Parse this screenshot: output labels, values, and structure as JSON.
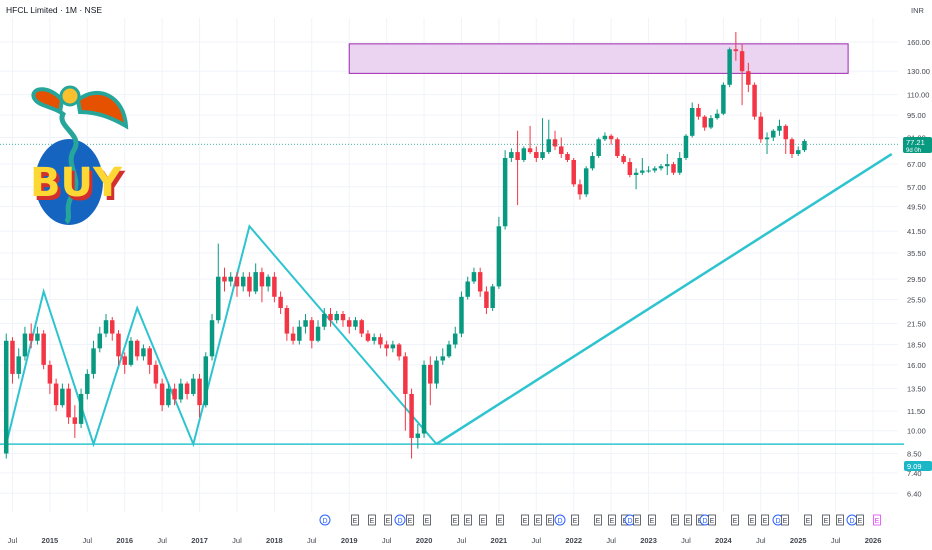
{
  "header": {
    "title": "HFCL Limited · 1M · NSE",
    "currency": "INR"
  },
  "colors": {
    "up": "#089981",
    "down": "#f23645",
    "line": "#2ec4cf",
    "box_fill": "#ebd4f2",
    "box_stroke": "#9c27b0",
    "grid": "#f0f3fa",
    "price_badge": "#089981",
    "support_badge": "#1cb7c7"
  },
  "price_badge": {
    "value": "77.21",
    "sub": "9d 0h"
  },
  "support_badge": {
    "value": "9.09"
  },
  "logo": {
    "text": "BUY"
  },
  "events": {
    "dividend": "D",
    "earnings": "E"
  },
  "chart_data": {
    "type": "candlestick",
    "title": "HFCL Limited · 1M · NSE",
    "y_scale": "log",
    "ylim": [
      5.6,
      190
    ],
    "y_ticks": [
      "160.00",
      "130.00",
      "110.00",
      "95.00",
      "81.00",
      "67.00",
      "57.00",
      "49.50",
      "41.50",
      "35.50",
      "29.50",
      "25.50",
      "21.50",
      "18.50",
      "16.00",
      "13.50",
      "11.50",
      "10.00",
      "8.50",
      "7.40",
      "6.40"
    ],
    "x_ticks": [
      "Jul",
      "2015",
      "Jul",
      "2016",
      "Jul",
      "2017",
      "Jul",
      "2018",
      "Jul",
      "2019",
      "Jul",
      "2020",
      "Jul",
      "2021",
      "Jul",
      "2022",
      "Jul",
      "2023",
      "Jul",
      "2024",
      "Jul",
      "2025",
      "Jul",
      "2026"
    ],
    "x_range": [
      "2014-05",
      "2026-05"
    ],
    "last_price": 77.21,
    "support_level": 9.09,
    "resistance_zone": {
      "low": 128,
      "high": 158,
      "from": "2019-01",
      "to": "2025-09"
    },
    "trendline": {
      "from": [
        "2020-03",
        9.1
      ],
      "to": [
        "2026-04",
        72
      ]
    },
    "zigzag": [
      [
        "2014-06",
        9.09
      ],
      [
        "2014-12",
        27
      ],
      [
        "2015-08",
        9.09
      ],
      [
        "2016-03",
        24
      ],
      [
        "2016-12",
        9.09
      ],
      [
        "2017-09",
        43
      ],
      [
        "2020-03",
        9.09
      ]
    ],
    "candles": [
      [
        8.5,
        19,
        8.2,
        20
      ],
      [
        19,
        15,
        14,
        19.5
      ],
      [
        15,
        17,
        14.5,
        18
      ],
      [
        17,
        20,
        16.5,
        21
      ],
      [
        20,
        19,
        18,
        21.5
      ],
      [
        19,
        20,
        18.5,
        21
      ],
      [
        20,
        16,
        15.5,
        20.5
      ],
      [
        16,
        14,
        13,
        16.5
      ],
      [
        14,
        12,
        11.5,
        14.5
      ],
      [
        12,
        13.5,
        11.8,
        14
      ],
      [
        13.5,
        11,
        10.5,
        14
      ],
      [
        11,
        10.5,
        9.5,
        12
      ],
      [
        10.5,
        13,
        10.2,
        13.5
      ],
      [
        13,
        15,
        12.5,
        15.5
      ],
      [
        15,
        18,
        14.5,
        19
      ],
      [
        18,
        20,
        17.5,
        21
      ],
      [
        20,
        22,
        19.5,
        23
      ],
      [
        22,
        20,
        19,
        22.5
      ],
      [
        20,
        17,
        16,
        20.5
      ],
      [
        17,
        16,
        15,
        17.5
      ],
      [
        16,
        19,
        15.8,
        19.5
      ],
      [
        19,
        17,
        16.5,
        19.2
      ],
      [
        17,
        18,
        16.5,
        18.5
      ],
      [
        18,
        16,
        15,
        18.3
      ],
      [
        16,
        14,
        13.5,
        16.5
      ],
      [
        14,
        12,
        11.5,
        14.5
      ],
      [
        12,
        13.5,
        11.8,
        14
      ],
      [
        13.5,
        12.5,
        12,
        14
      ],
      [
        12.5,
        14,
        12.2,
        14.5
      ],
      [
        14,
        13,
        12.5,
        14.2
      ],
      [
        13,
        14.5,
        12.8,
        15
      ],
      [
        14.5,
        12,
        11,
        15
      ],
      [
        12,
        17,
        11.8,
        17.5
      ],
      [
        17,
        22,
        16.5,
        23
      ],
      [
        22,
        30,
        21.5,
        38
      ],
      [
        30,
        29,
        27,
        32
      ],
      [
        29,
        30,
        28,
        31
      ],
      [
        30,
        28,
        26,
        31
      ],
      [
        28,
        30,
        27,
        31
      ],
      [
        30,
        27,
        26,
        31
      ],
      [
        27,
        31,
        26.5,
        33
      ],
      [
        31,
        28,
        25,
        32
      ],
      [
        28,
        30,
        27,
        30.5
      ],
      [
        30,
        26,
        25,
        31
      ],
      [
        26,
        24,
        23,
        27
      ],
      [
        24,
        20,
        19,
        24.5
      ],
      [
        20,
        19,
        18.5,
        21
      ],
      [
        19,
        21,
        18.5,
        22
      ],
      [
        21,
        22,
        20,
        23
      ],
      [
        22,
        19,
        18,
        22.5
      ],
      [
        19,
        21,
        18.8,
        22
      ],
      [
        21,
        23,
        20.5,
        24
      ],
      [
        23,
        22,
        21,
        24
      ],
      [
        22,
        23,
        21.5,
        23.5
      ],
      [
        23,
        22,
        21,
        23.5
      ],
      [
        22,
        21,
        20,
        22.5
      ],
      [
        21,
        22,
        20.5,
        22.5
      ],
      [
        22,
        20,
        19.5,
        22.2
      ],
      [
        20,
        19,
        18.8,
        20.5
      ],
      [
        19,
        19.5,
        18.5,
        20
      ],
      [
        19.5,
        18.5,
        18,
        20
      ],
      [
        18.5,
        18,
        17,
        19
      ],
      [
        18,
        18.5,
        17.5,
        19
      ],
      [
        18.5,
        17,
        16.5,
        18.7
      ],
      [
        17,
        13,
        10,
        17.5
      ],
      [
        13,
        9.5,
        8.2,
        13.5
      ],
      [
        9.5,
        9.8,
        8.8,
        10.5
      ],
      [
        9.8,
        16,
        9.5,
        16.5
      ],
      [
        16,
        14,
        12,
        17
      ],
      [
        14,
        16.5,
        13.5,
        17
      ],
      [
        16.5,
        17,
        16,
        18
      ],
      [
        17,
        18.5,
        16.8,
        19
      ],
      [
        18.5,
        20,
        18,
        21
      ],
      [
        20,
        26,
        19.5,
        27
      ],
      [
        26,
        29,
        25.5,
        30
      ],
      [
        29,
        31,
        28.5,
        32
      ],
      [
        31,
        27,
        26,
        32
      ],
      [
        27,
        24,
        23,
        28
      ],
      [
        24,
        28,
        23.5,
        28.5
      ],
      [
        28,
        43,
        27.5,
        46
      ],
      [
        43,
        70,
        42,
        74
      ],
      [
        70,
        73,
        68,
        75
      ],
      [
        73,
        69,
        50,
        85
      ],
      [
        69,
        75,
        68,
        76
      ],
      [
        75,
        73,
        72,
        88
      ],
      [
        73,
        70,
        68,
        76
      ],
      [
        70,
        73,
        69,
        93
      ],
      [
        73,
        80,
        72,
        92
      ],
      [
        80,
        76,
        74,
        85
      ],
      [
        76,
        72,
        70,
        81
      ],
      [
        72,
        69,
        68,
        73
      ],
      [
        69,
        58,
        57,
        70
      ],
      [
        58,
        54,
        52,
        60
      ],
      [
        54,
        65,
        53,
        66
      ],
      [
        65,
        71,
        64,
        73
      ],
      [
        71,
        80,
        70,
        81
      ],
      [
        80,
        82,
        79,
        84
      ],
      [
        82,
        80,
        77,
        83
      ],
      [
        80,
        71,
        70,
        81
      ],
      [
        71,
        68,
        67,
        72
      ],
      [
        68,
        62,
        61,
        70
      ],
      [
        62,
        63,
        56,
        65
      ],
      [
        63,
        64,
        62,
        70
      ],
      [
        64,
        64,
        63,
        66
      ],
      [
        64,
        65,
        63,
        66
      ],
      [
        65,
        66,
        64,
        67
      ],
      [
        66,
        67,
        62,
        72
      ],
      [
        67,
        63,
        62,
        68
      ],
      [
        63,
        70,
        62,
        73
      ],
      [
        70,
        82,
        69,
        83
      ],
      [
        82,
        100,
        81,
        104
      ],
      [
        100,
        94,
        92,
        103
      ],
      [
        94,
        87,
        85,
        95
      ],
      [
        87,
        93,
        86,
        95
      ],
      [
        93,
        96,
        92,
        99
      ],
      [
        96,
        118,
        95,
        120
      ],
      [
        118,
        152,
        116,
        154
      ],
      [
        152,
        150,
        140,
        172
      ],
      [
        150,
        130,
        102,
        158
      ],
      [
        130,
        118,
        112,
        138
      ],
      [
        118,
        94,
        92,
        120
      ],
      [
        94,
        80,
        78,
        97
      ],
      [
        80,
        81,
        72,
        84
      ],
      [
        81,
        85,
        79,
        86
      ],
      [
        85,
        88,
        82,
        92
      ],
      [
        88,
        80,
        72,
        89
      ],
      [
        80,
        72,
        70,
        81
      ],
      [
        72,
        74,
        71,
        76
      ],
      [
        74,
        79,
        73,
        80
      ]
    ]
  }
}
